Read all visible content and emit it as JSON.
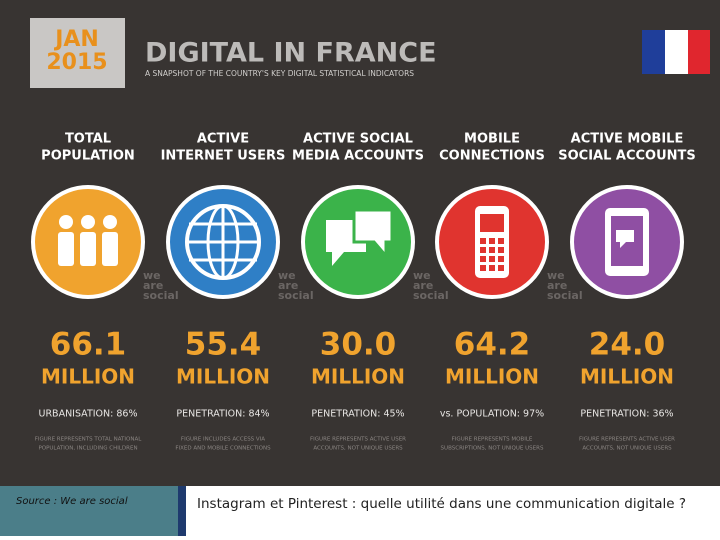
{
  "header": {
    "date": [
      "JAN",
      "2015"
    ],
    "title": "DIGITAL IN FRANCE",
    "subtitle": "A SNAPSHOT OF THE COUNTRY'S KEY DIGITAL STATISTICAL INDICATORS"
  },
  "stats": [
    {
      "heading": [
        "TOTAL",
        "POPULATION"
      ],
      "value": "66.1",
      "unit": "MILLION",
      "detail": "URBANISATION: 86%",
      "note": [
        "FIGURE REPRESENTS TOTAL NATIONAL",
        "POPULATION, INCLUDING CHILDREN"
      ]
    },
    {
      "heading": [
        "ACTIVE",
        "INTERNET USERS"
      ],
      "value": "55.4",
      "unit": "MILLION",
      "detail": "PENETRATION: 84%",
      "note": [
        "FIGURE INCLUDES ACCESS VIA",
        "FIXED AND MOBILE CONNECTIONS"
      ]
    },
    {
      "heading": [
        "ACTIVE SOCIAL",
        "MEDIA ACCOUNTS"
      ],
      "value": "30.0",
      "unit": "MILLION",
      "detail": "PENETRATION: 45%",
      "note": [
        "FIGURE REPRESENTS ACTIVE USER",
        "ACCOUNTS, NOT UNIQUE USERS"
      ]
    },
    {
      "heading": [
        "MOBILE",
        "CONNECTIONS"
      ],
      "value": "64.2",
      "unit": "MILLION",
      "detail": "vs. POPULATION: 97%",
      "note": [
        "FIGURE REPRESENTS MOBILE",
        "SUBSCRIPTIONS, NOT UNIQUE USERS"
      ]
    },
    {
      "heading": [
        "ACTIVE MOBILE",
        "SOCIAL ACCOUNTS"
      ],
      "value": "24.0",
      "unit": "MILLION",
      "detail": "PENETRATION: 36%",
      "note": [
        "FIGURE REPRESENTS ACTIVE USER",
        "ACCOUNTS, NOT UNIQUE USERS"
      ]
    }
  ],
  "watermark": [
    "we",
    "are",
    "social"
  ],
  "footer": {
    "source": "Source : We are social",
    "caption": "Instagram et Pinterest : quelle utilité dans une communication digitale ?"
  }
}
